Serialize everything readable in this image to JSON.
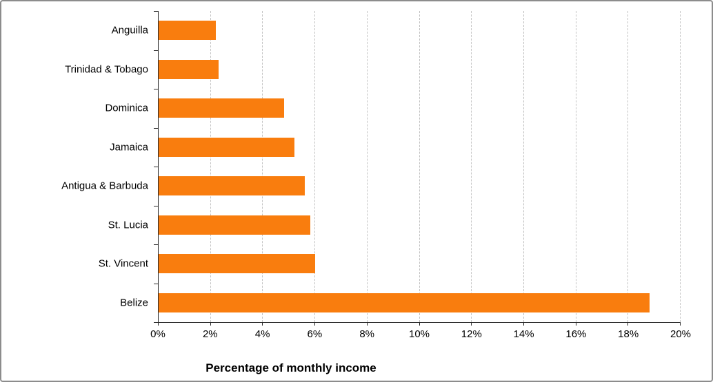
{
  "chart_data": {
    "type": "bar",
    "orientation": "horizontal",
    "title": "",
    "xlabel": "Percentage of monthly income",
    "ylabel": "",
    "categories": [
      "Anguilla",
      "Trinidad & Tobago",
      "Dominica",
      "Jamaica",
      "Antigua & Barbuda",
      "St. Lucia",
      "St. Vincent",
      "Belize"
    ],
    "values": [
      2.2,
      2.3,
      4.8,
      5.2,
      5.6,
      5.8,
      6.0,
      18.8
    ],
    "xlim": [
      0,
      20
    ],
    "xticks": [
      0,
      2,
      4,
      6,
      8,
      10,
      12,
      14,
      16,
      18,
      20
    ],
    "xtick_labels": [
      "0%",
      "2%",
      "4%",
      "6%",
      "8%",
      "10%",
      "12%",
      "14%",
      "16%",
      "18%",
      "20%"
    ],
    "grid": "dashed-vertical",
    "legend_position": "none",
    "bar_color": "#f97d0e",
    "grid_color": "#c3c3c3",
    "axis_color": "#262626"
  }
}
